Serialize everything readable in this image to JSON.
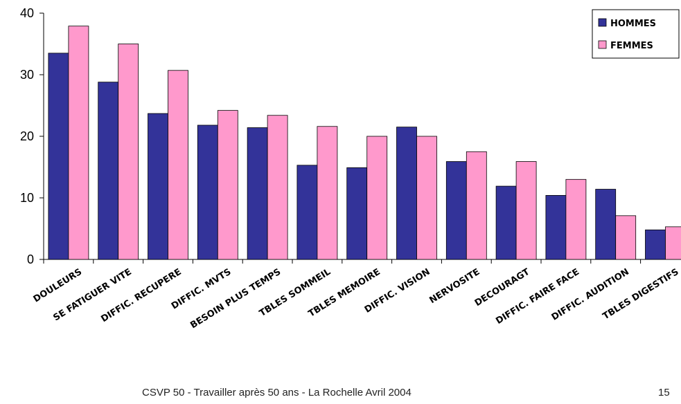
{
  "chart_data": {
    "type": "bar",
    "categories": [
      "DOULEURS",
      "SE FATIGUER VITE",
      "DIFFIC. RECUPERE",
      "DIFFIC. MVTS",
      "BESOIN PLUS TEMPS",
      "TBLES SOMMEIL",
      "TBLES MEMOIRE",
      "DIFFIC. VISION",
      "NERVOSITE",
      "DECOURAGT",
      "DIFFIC. FAIRE FACE",
      "DIFFIC. AUDITION",
      "TBLES DIGESTIFS"
    ],
    "series": [
      {
        "name": "HOMMES",
        "color": "#333399",
        "values": [
          33.5,
          28.8,
          23.7,
          21.8,
          21.4,
          15.3,
          14.9,
          21.5,
          15.9,
          11.9,
          10.4,
          11.4,
          4.8
        ]
      },
      {
        "name": "FEMMES",
        "color": "#ff99cc",
        "values": [
          37.9,
          35.0,
          30.7,
          24.2,
          23.4,
          21.6,
          20.0,
          20.0,
          17.5,
          15.9,
          13.0,
          7.1,
          5.3
        ]
      }
    ],
    "yticks": [
      0,
      10,
      20,
      30,
      40
    ],
    "ylim": [
      0,
      40
    ],
    "grid": false,
    "legend": "top-right"
  },
  "footer": {
    "text": "CSVP 50 - Travailler après 50 ans - La Rochelle Avril 2004",
    "page_number": "15"
  }
}
